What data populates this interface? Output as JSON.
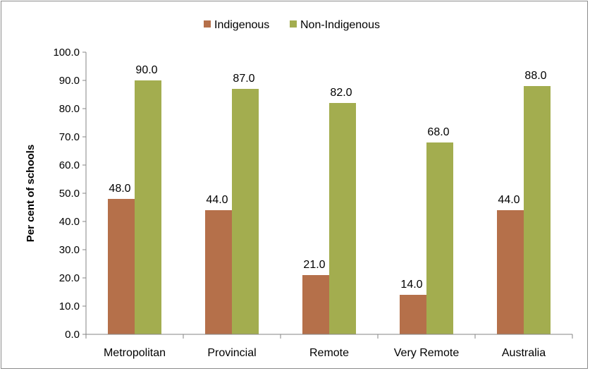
{
  "chart_data": {
    "type": "bar",
    "title": "",
    "xlabel": "",
    "ylabel": "Per cent of schools",
    "categories": [
      "Metropolitan",
      "Provincial",
      "Remote",
      "Very Remote",
      "Australia"
    ],
    "series": [
      {
        "name": "Indigenous",
        "color": "#b5704a",
        "values": [
          48.0,
          44.0,
          21.0,
          14.0,
          44.0
        ]
      },
      {
        "name": "Non-Indigenous",
        "color": "#a3ad4f",
        "values": [
          90.0,
          87.0,
          82.0,
          68.0,
          88.0
        ]
      }
    ],
    "ylim": [
      0,
      100
    ],
    "ytick_step": 10,
    "ytick_labels": [
      "0.0",
      "10.0",
      "20.0",
      "30.0",
      "40.0",
      "50.0",
      "60.0",
      "70.0",
      "80.0",
      "90.0",
      "100.0"
    ],
    "grid": false,
    "legend_position": "top-center",
    "data_labels": true,
    "value_format_decimals": 1
  }
}
